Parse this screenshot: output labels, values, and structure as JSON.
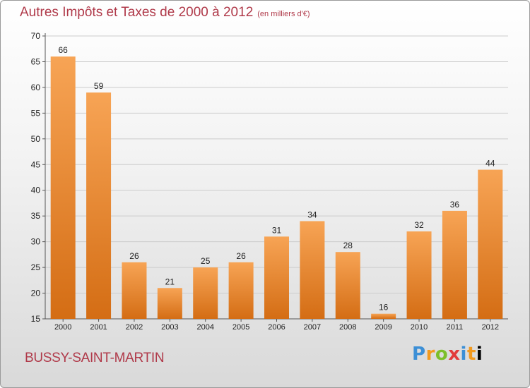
{
  "title": "Autres Impôts et Taxes de 2000 à 2012",
  "unit_label": "(en milliers d'€)",
  "place": "BUSSY-SAINT-MARTIN",
  "logo_text": "Proxiti",
  "colors": {
    "title": "#b03a4a",
    "bar_top": "#f7a455",
    "bar_bottom": "#d46d14",
    "grid": "#cccccc",
    "axis_text": "#222222"
  },
  "chart_data": {
    "type": "bar",
    "title": "Autres Impôts et Taxes de 2000 à 2012",
    "subtitle": "(en milliers d'€)",
    "xlabel": "",
    "ylabel": "",
    "categories": [
      "2000",
      "2001",
      "2002",
      "2003",
      "2004",
      "2005",
      "2006",
      "2007",
      "2008",
      "2009",
      "2010",
      "2011",
      "2012"
    ],
    "values": [
      66,
      59,
      26,
      21,
      25,
      26,
      31,
      34,
      28,
      16,
      32,
      36,
      44
    ],
    "ylim": [
      15,
      70
    ],
    "yticks": [
      15,
      20,
      25,
      30,
      35,
      40,
      45,
      50,
      55,
      60,
      65,
      70
    ],
    "grid": true,
    "data_labels": true
  }
}
